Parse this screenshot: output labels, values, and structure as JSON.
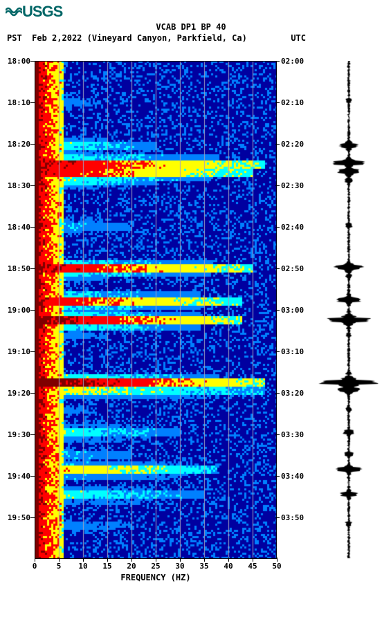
{
  "logo_text": "USGS",
  "title": "VCAB DP1 BP 40",
  "tz_left": "PST",
  "date": "Feb 2,2022",
  "location": "(Vineyard Canyon, Parkfield, Ca)",
  "tz_right": "UTC",
  "x_label": "FREQUENCY (HZ)",
  "spectrogram": {
    "type": "spectrogram",
    "xlim": [
      0,
      50
    ],
    "xticks": [
      0,
      5,
      10,
      15,
      20,
      25,
      30,
      35,
      40,
      45,
      50
    ],
    "left_ticks": [
      "18:00",
      "18:10",
      "18:20",
      "18:30",
      "18:40",
      "18:50",
      "19:00",
      "19:10",
      "19:20",
      "19:30",
      "19:40",
      "19:50"
    ],
    "right_ticks": [
      "02:00",
      "02:10",
      "02:20",
      "02:30",
      "02:40",
      "02:50",
      "03:00",
      "03:10",
      "03:20",
      "03:30",
      "03:40",
      "03:50"
    ],
    "grid_color": "#a0a0c0",
    "background_color": "#0000a0",
    "colormap": {
      "low": "#0000a0",
      "mid_low": "#0080ff",
      "mid": "#00ffff",
      "mid_high": "#ffff00",
      "high": "#ff0000",
      "max": "#800000"
    },
    "low_freq_warm_band_hz": [
      0,
      6
    ],
    "event_rows": [
      {
        "t": 0.08,
        "intensity": 0.3,
        "extent": 0.25
      },
      {
        "t": 0.17,
        "intensity": 0.5,
        "extent": 0.5
      },
      {
        "t": 0.205,
        "intensity": 0.9,
        "extent": 0.95
      },
      {
        "t": 0.222,
        "intensity": 0.85,
        "extent": 0.9
      },
      {
        "t": 0.24,
        "intensity": 0.5,
        "extent": 0.5
      },
      {
        "t": 0.33,
        "intensity": 0.4,
        "extent": 0.4
      },
      {
        "t": 0.415,
        "intensity": 0.9,
        "extent": 0.9
      },
      {
        "t": 0.432,
        "intensity": 0.4,
        "extent": 0.3
      },
      {
        "t": 0.48,
        "intensity": 0.85,
        "extent": 0.85
      },
      {
        "t": 0.498,
        "intensity": 0.4,
        "extent": 0.4
      },
      {
        "t": 0.52,
        "intensity": 0.95,
        "extent": 0.85
      },
      {
        "t": 0.55,
        "intensity": 0.3,
        "extent": 0.3
      },
      {
        "t": 0.645,
        "intensity": 1.0,
        "extent": 0.95
      },
      {
        "t": 0.66,
        "intensity": 0.6,
        "extent": 0.95
      },
      {
        "t": 0.7,
        "intensity": 0.3,
        "extent": 0.25
      },
      {
        "t": 0.745,
        "intensity": 0.5,
        "extent": 0.6
      },
      {
        "t": 0.79,
        "intensity": 0.4,
        "extent": 0.4
      },
      {
        "t": 0.82,
        "intensity": 0.7,
        "extent": 0.75
      },
      {
        "t": 0.87,
        "intensity": 0.5,
        "extent": 0.7
      },
      {
        "t": 0.93,
        "intensity": 0.3,
        "extent": 0.4
      }
    ]
  },
  "seismogram": {
    "type": "waveform",
    "color": "#000000",
    "baseline_amp": 0.03,
    "events": [
      {
        "t": 0.08,
        "amp": 0.1
      },
      {
        "t": 0.17,
        "amp": 0.35
      },
      {
        "t": 0.205,
        "amp": 0.55
      },
      {
        "t": 0.222,
        "amp": 0.4
      },
      {
        "t": 0.24,
        "amp": 0.15
      },
      {
        "t": 0.33,
        "amp": 0.12
      },
      {
        "t": 0.415,
        "amp": 0.5
      },
      {
        "t": 0.432,
        "amp": 0.12
      },
      {
        "t": 0.48,
        "amp": 0.45
      },
      {
        "t": 0.52,
        "amp": 0.75
      },
      {
        "t": 0.55,
        "amp": 0.1
      },
      {
        "t": 0.645,
        "amp": 1.0
      },
      {
        "t": 0.66,
        "amp": 0.4
      },
      {
        "t": 0.7,
        "amp": 0.1
      },
      {
        "t": 0.745,
        "amp": 0.2
      },
      {
        "t": 0.79,
        "amp": 0.15
      },
      {
        "t": 0.82,
        "amp": 0.45
      },
      {
        "t": 0.87,
        "amp": 0.3
      },
      {
        "t": 0.93,
        "amp": 0.12
      }
    ]
  }
}
